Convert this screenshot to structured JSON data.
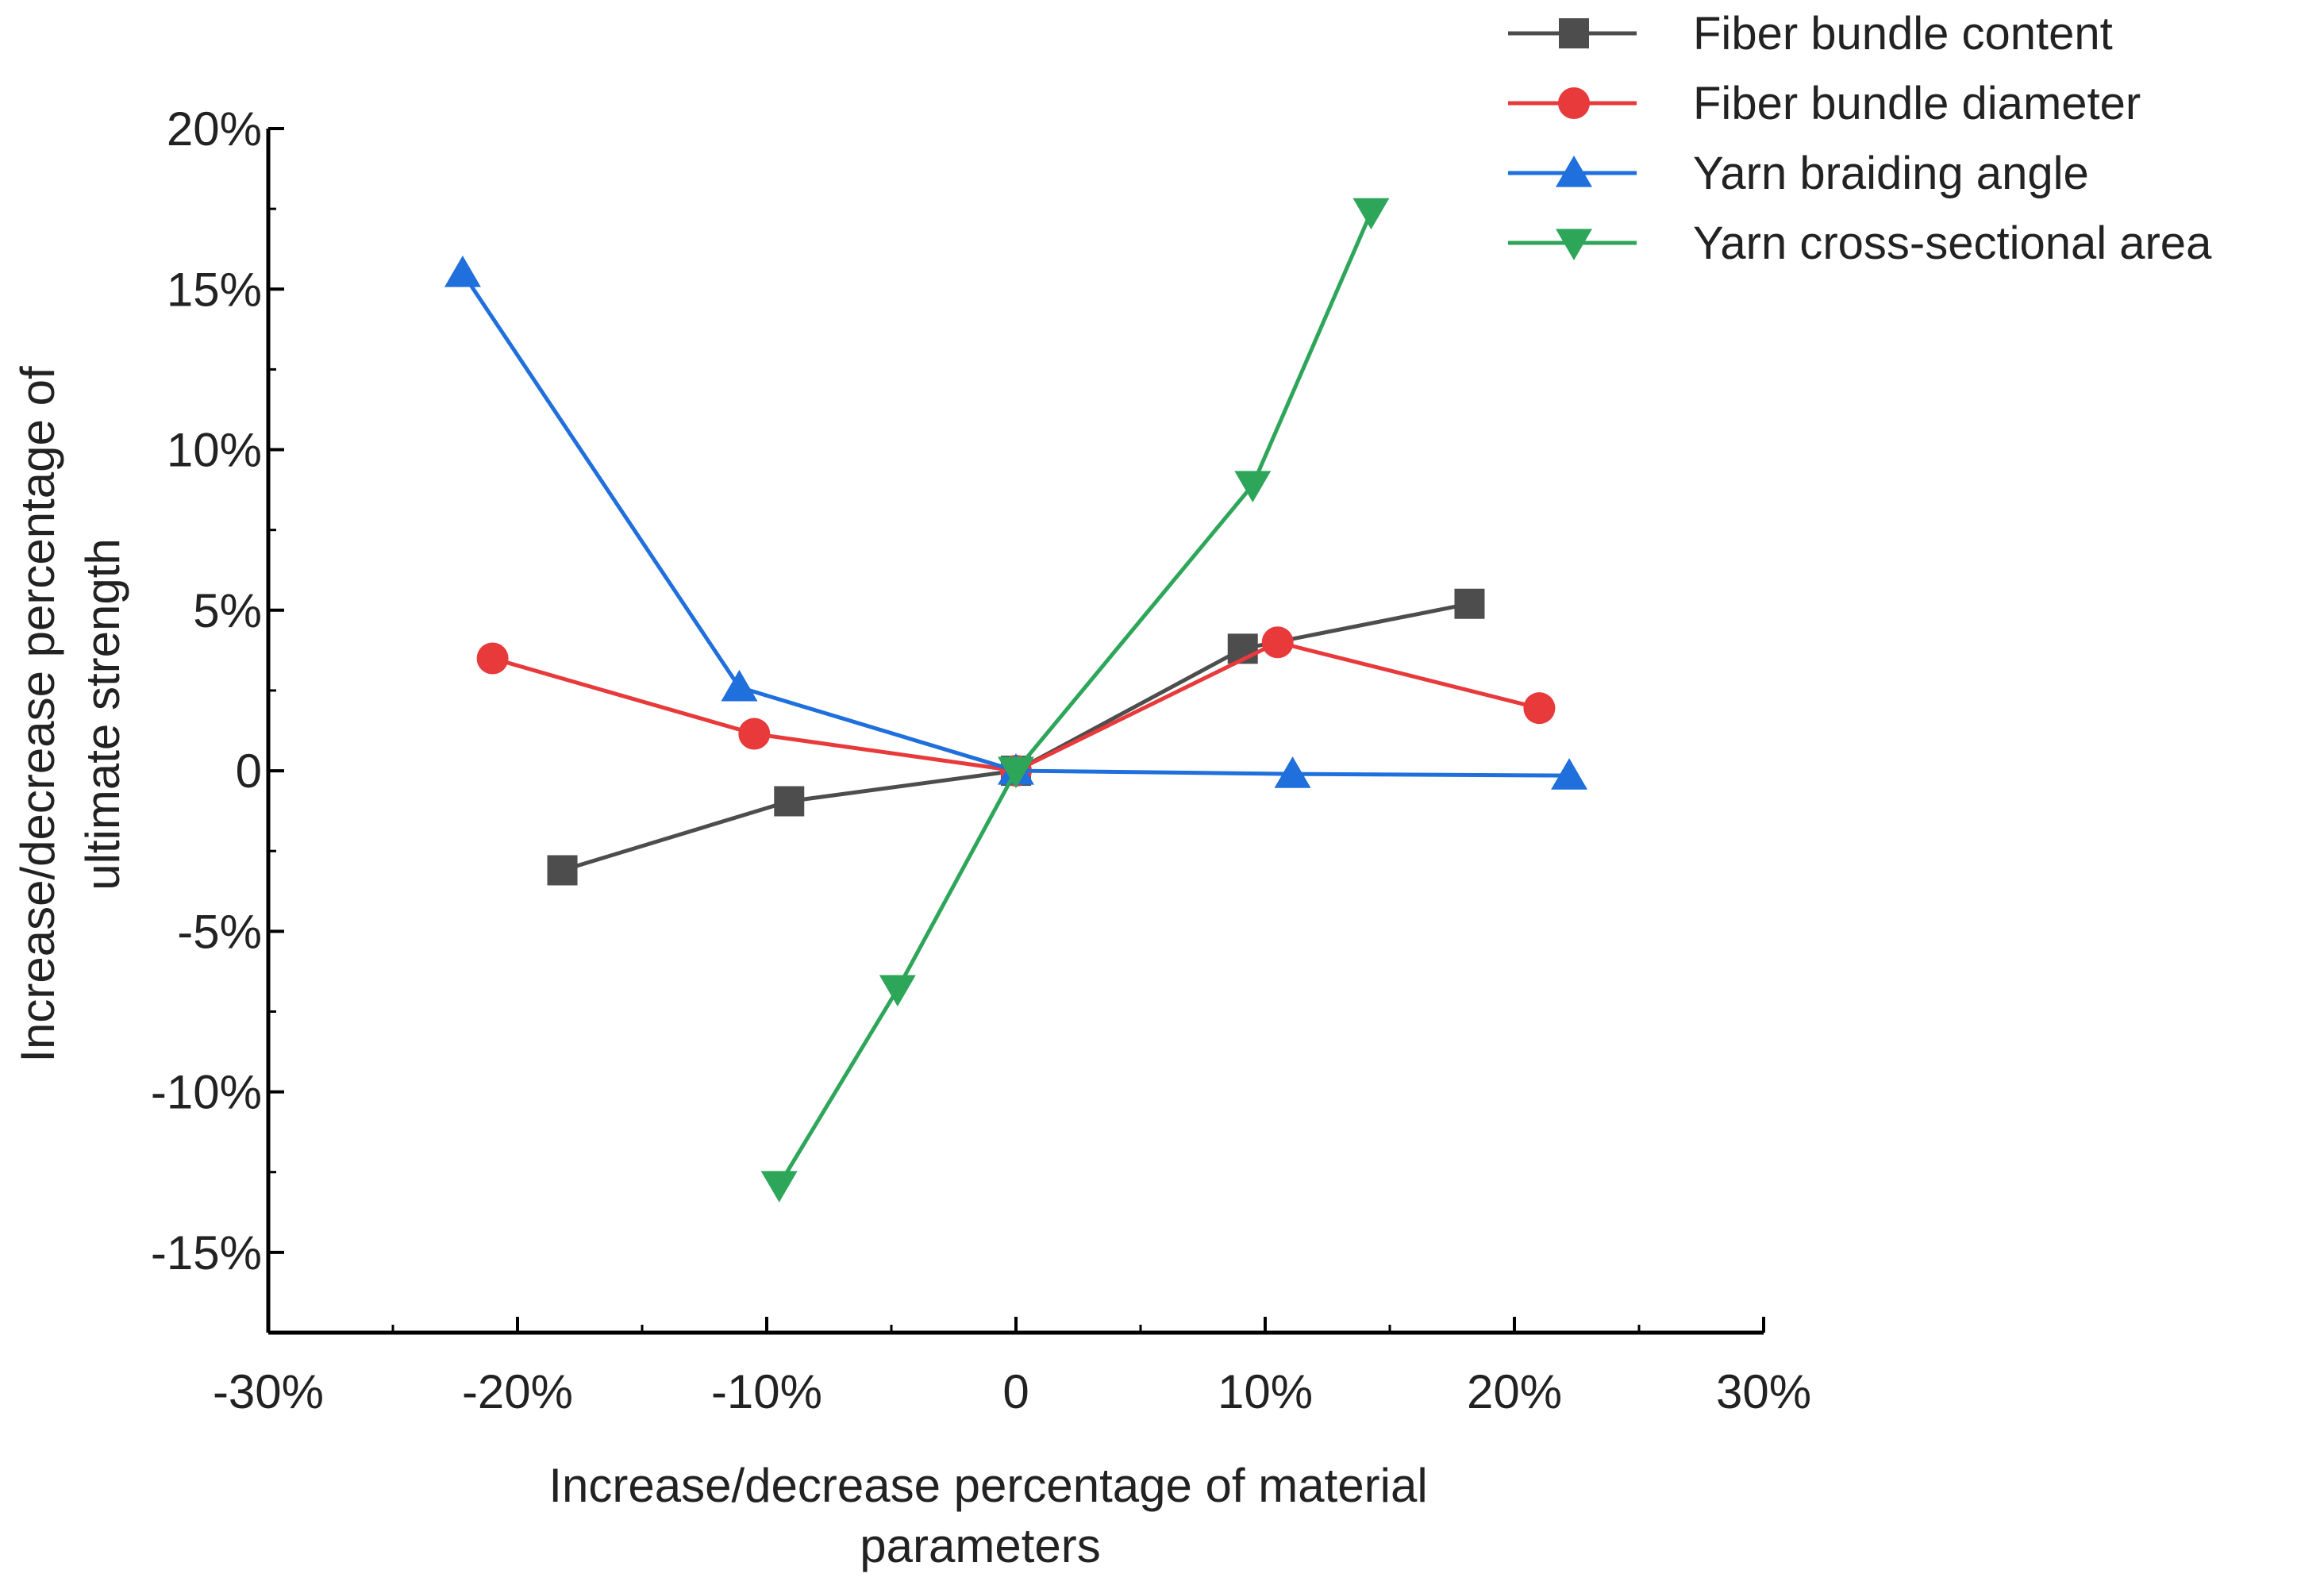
{
  "chart_data": {
    "type": "line",
    "title": "",
    "xlabel_lines": [
      "Increase/decrease percentage of material",
      "parameters"
    ],
    "ylabel_lines": [
      "Increase/decrease percentage of",
      "ultimate strength"
    ],
    "xlim": [
      -30,
      30
    ],
    "ylim": [
      -17.5,
      20
    ],
    "x_ticks": [
      {
        "value": -30,
        "label": "-30%"
      },
      {
        "value": -20,
        "label": "-20%"
      },
      {
        "value": -10,
        "label": "-10%"
      },
      {
        "value": 0,
        "label": "0"
      },
      {
        "value": 10,
        "label": "10%"
      },
      {
        "value": 20,
        "label": "20%"
      },
      {
        "value": 30,
        "label": "30%"
      }
    ],
    "y_ticks": [
      {
        "value": 20,
        "label": "20%"
      },
      {
        "value": 15,
        "label": "15%"
      },
      {
        "value": 10,
        "label": "10%"
      },
      {
        "value": 5,
        "label": "5%"
      },
      {
        "value": 0,
        "label": "0"
      },
      {
        "value": -5,
        "label": "-5%"
      },
      {
        "value": -10,
        "label": "-10%"
      },
      {
        "value": -15,
        "label": "-15%"
      }
    ],
    "grid": false,
    "legend_position": "top-right",
    "series": [
      {
        "name": "Fiber bundle content",
        "color": "#4d4d4d",
        "marker": "square",
        "x": [
          -18.2,
          -9.1,
          0,
          9.1,
          18.2
        ],
        "y": [
          -3.1,
          -0.95,
          0,
          3.8,
          5.2
        ]
      },
      {
        "name": "Fiber bundle diameter",
        "color": "#e8393b",
        "marker": "circle",
        "x": [
          -21,
          -10.5,
          0,
          10.5,
          21
        ],
        "y": [
          3.5,
          1.15,
          0,
          4.0,
          1.95
        ]
      },
      {
        "name": "Yarn braiding angle",
        "color": "#1f6fdc",
        "marker": "triangle-up",
        "x": [
          -22.2,
          -11.1,
          0,
          11.1,
          22.2
        ],
        "y": [
          15.5,
          2.6,
          0,
          -0.1,
          -0.15
        ]
      },
      {
        "name": "Yarn cross-sectional area",
        "color": "#2ea65a",
        "marker": "triangle-down",
        "x": [
          -9.5,
          -4.75,
          0,
          9.5,
          14.25
        ],
        "y": [
          -12.9,
          -6.8,
          0,
          8.9,
          17.4
        ]
      }
    ]
  }
}
